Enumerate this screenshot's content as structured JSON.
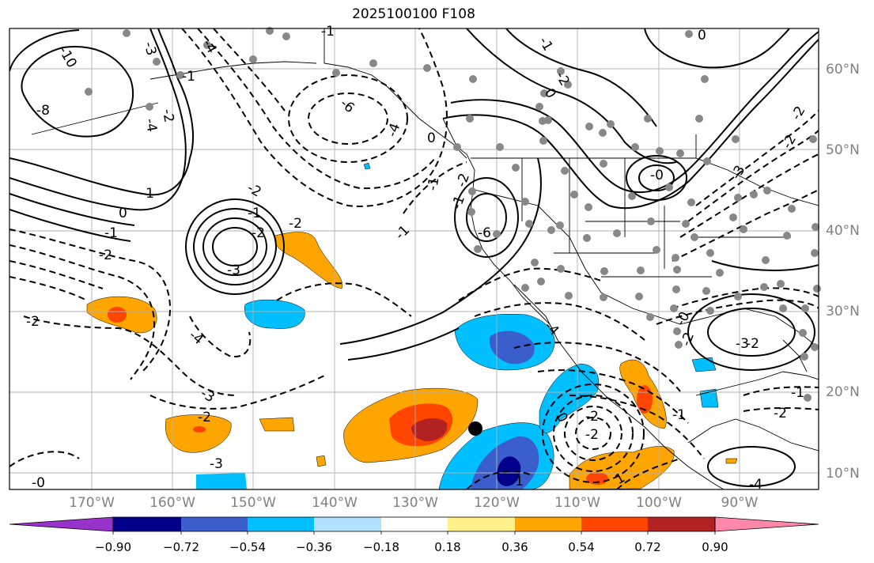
{
  "title": "2025100100 F108",
  "lon_labels": [
    "170°W",
    "160°W",
    "150°W",
    "140°W",
    "130°W",
    "120°W",
    "110°W",
    "100°W",
    "90°W"
  ],
  "lat_labels": [
    "60°N",
    "50°N",
    "40°N",
    "30°N",
    "20°N",
    "10°N"
  ],
  "colorbar": {
    "ticks": [
      "−0.90",
      "−0.72",
      "−0.54",
      "−0.36",
      "−0.18",
      "0.18",
      "0.36",
      "0.54",
      "0.72",
      "0.90"
    ],
    "colors": [
      "#9932cc",
      "#00008b",
      "#3a5fcd",
      "#00bfff",
      "#b0e2ff",
      "#ffffff",
      "#fff08a",
      "#ffa500",
      "#ff4500",
      "#b22222",
      "#ff88aa"
    ]
  },
  "contour_labels": [
    "-10",
    "-8",
    "-4",
    "-3",
    "-2",
    "-1",
    "0",
    "-6",
    "-4",
    "-2",
    "-2",
    "-3",
    "-2",
    "-1",
    "-2",
    "-2",
    "-4",
    "-3",
    "-4",
    "-1",
    "-2",
    "-3",
    "-0",
    "-1",
    "-2",
    "-1",
    "-1",
    "0",
    "-1",
    "-1",
    "0",
    "-2",
    "0",
    "-0",
    "-6",
    "-3",
    "-0",
    "-2",
    "-3",
    "-2",
    "-2",
    "-4",
    "0",
    "-1",
    "1",
    "-1",
    "-4",
    "-2",
    "-1",
    "-2",
    "-2",
    "-2",
    "-1"
  ],
  "marker_colors": {
    "station": "#888888",
    "center": "#000000"
  }
}
